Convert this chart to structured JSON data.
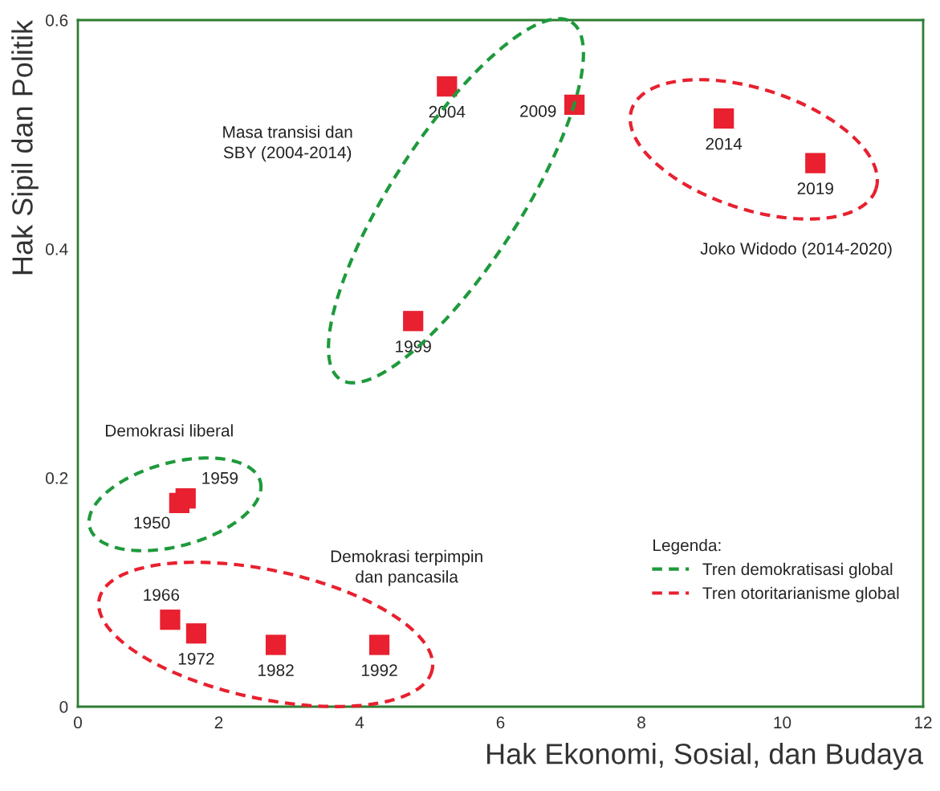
{
  "chart_data": {
    "type": "scatter",
    "xlabel": "Hak Ekonomi, Sosial, dan Budaya",
    "ylabel": "Hak Sipil dan Politik",
    "xlim": [
      0,
      12
    ],
    "xticks": [
      0,
      2,
      4,
      6,
      8,
      10,
      12
    ],
    "ylim": [
      0,
      0.6
    ],
    "yticks": [
      0,
      0.2,
      0.4,
      0.6
    ],
    "grid": false,
    "marker": "square",
    "legend": "bottom right",
    "legend_title": "Legenda:",
    "series": [
      {
        "color": "#e8202f",
        "x": [
          1.44,
          1.53,
          1.31,
          1.68,
          2.81,
          4.28,
          4.76,
          5.24,
          7.05,
          9.17,
          10.47
        ],
        "values": [
          0.178,
          0.182,
          0.076,
          0.064,
          0.054,
          0.054,
          0.337,
          0.542,
          0.526,
          0.514,
          0.475
        ]
      },
      {
        "type": "line",
        "name": "Tren demokratisasi global",
        "color": "#1e9a3c",
        "line_style": "dashed"
      },
      {
        "type": "line",
        "name": "Tren otoritarianisme global",
        "color": "#e8202f",
        "line_style": "dashed"
      }
    ],
    "annotations": [
      {
        "text": "1950",
        "x": 1.44,
        "y": 0.178
      },
      {
        "text": "1959",
        "x": 1.53,
        "y": 0.182
      },
      {
        "text": "1966",
        "x": 1.31,
        "y": 0.076
      },
      {
        "text": "1972",
        "x": 1.68,
        "y": 0.064
      },
      {
        "text": "1982",
        "x": 2.81,
        "y": 0.054
      },
      {
        "text": "1992",
        "x": 4.28,
        "y": 0.054
      },
      {
        "text": "1999",
        "x": 4.76,
        "y": 0.337
      },
      {
        "text": "2004",
        "x": 5.24,
        "y": 0.542
      },
      {
        "text": "2009",
        "x": 7.05,
        "y": 0.526
      },
      {
        "text": "2014",
        "x": 9.17,
        "y": 0.514
      },
      {
        "text": "2019",
        "x": 10.47,
        "y": 0.475
      },
      "Masa transisi dan\nSBY (2004-2014)",
      "Joko Widodo (2014-2020)",
      "Demokrasi liberal",
      "Demokrasi terpimpin\ndan pancasila"
    ]
  }
}
